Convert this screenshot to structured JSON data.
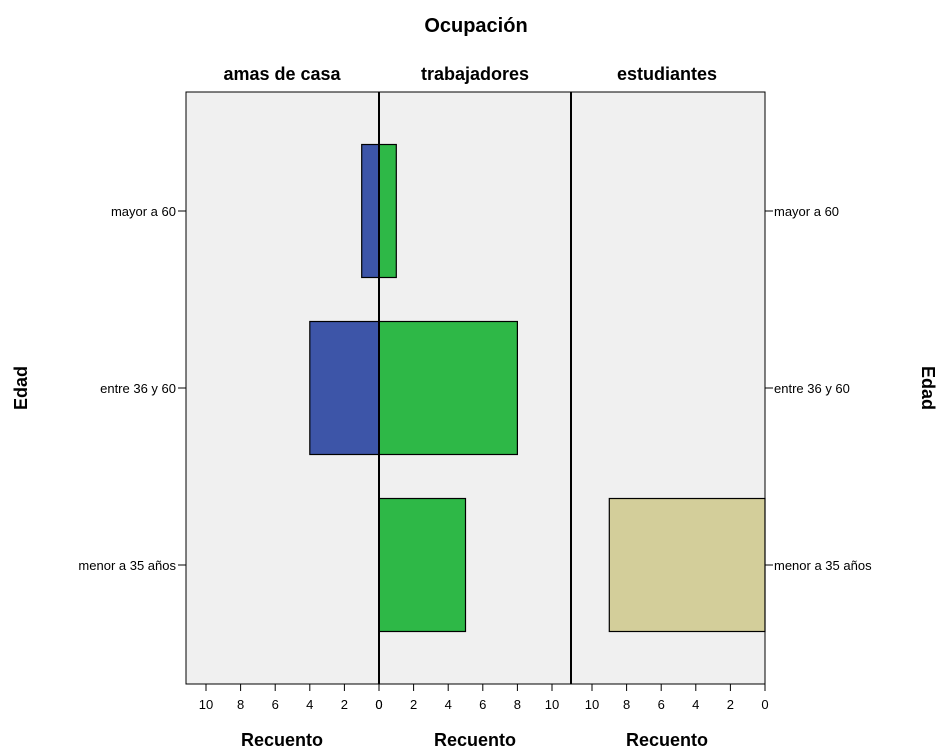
{
  "chart_data": {
    "type": "bar",
    "title": "Ocupación",
    "panels": [
      "amas de casa",
      "trabajadores",
      "estudiantes"
    ],
    "categories": [
      "mayor a 60",
      "entre 36 y 60",
      "menor a 35 años"
    ],
    "series": [
      {
        "name": "amas de casa",
        "color": "#3d55a8",
        "values": [
          1,
          4,
          0
        ]
      },
      {
        "name": "trabajadores",
        "color": "#2eb847",
        "values": [
          1,
          8,
          5
        ]
      },
      {
        "name": "estudiantes",
        "color": "#d3ce9a",
        "values": [
          0,
          0,
          9
        ]
      }
    ],
    "xlabel": "Recuento",
    "ylabel": "Edad",
    "xlim": [
      0,
      11
    ],
    "ticks": [
      10,
      8,
      6,
      4,
      2,
      0
    ],
    "ticks_right_panel": [
      0,
      2,
      4,
      6,
      8,
      10
    ],
    "grid": false
  }
}
